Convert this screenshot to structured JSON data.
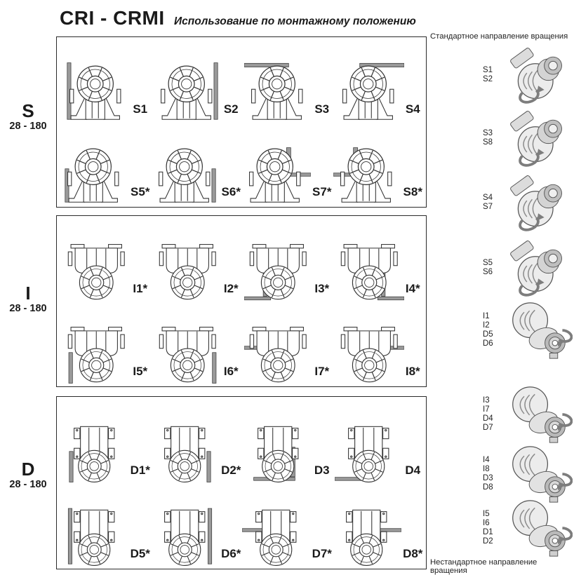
{
  "header": {
    "title": "CRI - CRMI",
    "subtitle": "Использование по монтажному положению"
  },
  "right_panel": {
    "top_caption": "Стандартное направление вращения",
    "bottom_caption": "Нестандартное направление вращения",
    "rows": [
      {
        "codes": [
          "S1",
          "S2"
        ],
        "pose": "A"
      },
      {
        "codes": [
          "S3",
          "S8"
        ],
        "pose": "A"
      },
      {
        "codes": [
          "S4",
          "S7"
        ],
        "pose": "A"
      },
      {
        "codes": [
          "S5",
          "S6"
        ],
        "pose": "A"
      },
      {
        "codes": [
          "I1",
          "I2",
          "D5",
          "D6"
        ],
        "pose": "B"
      },
      {
        "codes": [
          "I3",
          "I7",
          "D4",
          "D7"
        ],
        "pose": "B"
      },
      {
        "codes": [
          "I4",
          "I8",
          "D3",
          "D8"
        ],
        "pose": "B"
      },
      {
        "codes": [
          "I5",
          "I6",
          "D1",
          "D2"
        ],
        "pose": "B"
      }
    ]
  },
  "sections": [
    {
      "id": "S",
      "label": "S",
      "size_range": "28 - 180",
      "orientation": "upright",
      "cells": [
        {
          "code": "S1",
          "label": "S1",
          "mount": "wall-left"
        },
        {
          "code": "S2",
          "label": "S2",
          "mount": "wall-right"
        },
        {
          "code": "S3",
          "label": "S3",
          "mount": "ceiling-left"
        },
        {
          "code": "S4",
          "label": "S4",
          "mount": "ceiling-right"
        },
        {
          "code": "S5",
          "label": "S5*",
          "mount": "wall-left-low"
        },
        {
          "code": "S6",
          "label": "S6*",
          "mount": "wall-right-low"
        },
        {
          "code": "S7",
          "label": "S7*",
          "mount": "shelf-right"
        },
        {
          "code": "S8",
          "label": "S8*",
          "mount": "shelf-left"
        }
      ]
    },
    {
      "id": "I",
      "label": "I",
      "size_range": "28 - 180",
      "orientation": "inverted",
      "cells": [
        {
          "code": "I1",
          "label": "I1*",
          "mount": "none"
        },
        {
          "code": "I2",
          "label": "I2*",
          "mount": "none"
        },
        {
          "code": "I3",
          "label": "I3*",
          "mount": "bracket-left"
        },
        {
          "code": "I4",
          "label": "I4*",
          "mount": "bracket-right"
        },
        {
          "code": "I5",
          "label": "I5*",
          "mount": "post-left"
        },
        {
          "code": "I6",
          "label": "I6*",
          "mount": "post-right"
        },
        {
          "code": "I7",
          "label": "I7*",
          "mount": "shelf-left-mid"
        },
        {
          "code": "I8",
          "label": "I8*",
          "mount": "shelf-right-mid"
        }
      ]
    },
    {
      "id": "D",
      "label": "D",
      "size_range": "28 - 180",
      "orientation": "plate",
      "cells": [
        {
          "code": "D1",
          "label": "D1*",
          "mount": "post-left"
        },
        {
          "code": "D2",
          "label": "D2*",
          "mount": "post-right"
        },
        {
          "code": "D3",
          "label": "D3",
          "mount": "bracket-right"
        },
        {
          "code": "D4",
          "label": "D4",
          "mount": "floor-left"
        },
        {
          "code": "D5",
          "label": "D5*",
          "mount": "wall-left"
        },
        {
          "code": "D6",
          "label": "D6*",
          "mount": "wall-right"
        },
        {
          "code": "D7",
          "label": "D7*",
          "mount": "shelf-left-mid"
        },
        {
          "code": "D8",
          "label": "D8*",
          "mount": "shelf-right-mid"
        }
      ]
    }
  ],
  "colors": {
    "line": "#2b2b2b",
    "mount_bar": "#9a9a9a",
    "shade_light": "#ececec",
    "shade_dark": "#b9b9b9"
  }
}
